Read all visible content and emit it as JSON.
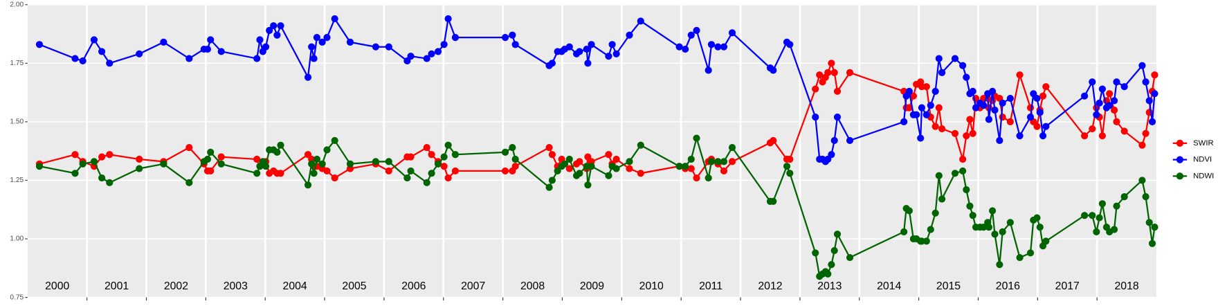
{
  "chart_data": {
    "type": "line",
    "x": [
      2000.2,
      2000.8,
      2000.93,
      2001.12,
      2001.25,
      2001.38,
      2001.88,
      2002.29,
      2002.72,
      2002.97,
      2003.03,
      2003.08,
      2003.26,
      2003.86,
      2003.91,
      2003.96,
      2004.01,
      2004.07,
      2004.14,
      2004.2,
      2004.26,
      2004.72,
      2004.78,
      2004.82,
      2004.87,
      2004.96,
      2005.04,
      2005.17,
      2005.43,
      2005.86,
      2006.08,
      2006.39,
      2006.45,
      2006.72,
      2006.8,
      2006.91,
      2007.01,
      2007.08,
      2007.2,
      2008.04,
      2008.16,
      2008.21,
      2008.78,
      2008.83,
      2008.92,
      2008.99,
      2009.04,
      2009.12,
      2009.24,
      2009.29,
      2009.41,
      2009.43,
      2009.49,
      2009.78,
      2009.84,
      2009.91,
      2010.13,
      2010.32,
      2010.97,
      2011.07,
      2011.17,
      2011.26,
      2011.46,
      2011.51,
      2011.62,
      2011.72,
      2011.86,
      2012.5,
      2012.55,
      2012.78,
      2012.83,
      2013.26,
      2013.33,
      2013.38,
      2013.43,
      2013.47,
      2013.53,
      2013.58,
      2013.63,
      2013.84,
      2014.75,
      2014.79,
      2014.84,
      2014.91,
      2014.96,
      2015.03,
      2015.05,
      2015.13,
      2015.2,
      2015.28,
      2015.34,
      2015.39,
      2015.61,
      2015.74,
      2015.8,
      2015.86,
      2015.91,
      2015.96,
      2016.03,
      2016.09,
      2016.16,
      2016.18,
      2016.24,
      2016.28,
      2016.36,
      2016.41,
      2016.54,
      2016.7,
      2016.88,
      2016.93,
      2016.99,
      2017.04,
      2017.09,
      2017.14,
      2017.79,
      2017.92,
      2017.99,
      2018.04,
      2018.09,
      2018.16,
      2018.21,
      2018.29,
      2018.33,
      2018.46,
      2018.76,
      2018.82,
      2018.88,
      2018.93,
      2018.97
    ],
    "series": [
      {
        "name": "SWIR",
        "color": "#ff0000",
        "values": [
          1.32,
          1.36,
          1.33,
          1.31,
          1.35,
          1.36,
          1.34,
          1.33,
          1.39,
          1.32,
          1.29,
          1.29,
          1.35,
          1.34,
          1.31,
          1.32,
          1.33,
          1.28,
          1.29,
          1.28,
          1.28,
          1.36,
          1.34,
          1.31,
          1.31,
          1.3,
          1.29,
          1.26,
          1.3,
          1.32,
          1.29,
          1.35,
          1.35,
          1.39,
          1.36,
          1.33,
          1.31,
          1.26,
          1.29,
          1.29,
          1.29,
          1.31,
          1.39,
          1.36,
          1.31,
          1.34,
          1.32,
          1.3,
          1.32,
          1.33,
          1.3,
          1.35,
          1.33,
          1.36,
          1.32,
          1.34,
          1.3,
          1.28,
          1.31,
          1.3,
          1.3,
          1.26,
          1.33,
          1.34,
          1.32,
          1.29,
          1.33,
          1.41,
          1.42,
          1.34,
          1.34,
          1.64,
          1.7,
          1.67,
          1.69,
          1.71,
          1.75,
          1.71,
          1.63,
          1.71,
          1.63,
          1.56,
          1.56,
          1.61,
          1.66,
          1.67,
          1.65,
          1.65,
          1.52,
          1.48,
          1.56,
          1.47,
          1.45,
          1.34,
          1.44,
          1.51,
          1.45,
          1.6,
          1.56,
          1.6,
          1.6,
          1.56,
          1.59,
          1.61,
          1.6,
          1.52,
          1.5,
          1.7,
          1.56,
          1.5,
          1.48,
          1.55,
          1.61,
          1.65,
          1.44,
          1.47,
          1.56,
          1.52,
          1.44,
          1.59,
          1.62,
          1.55,
          1.5,
          1.46,
          1.4,
          1.45,
          1.54,
          1.63,
          1.7
        ]
      },
      {
        "name": "NDVI",
        "color": "#0000ff",
        "values": [
          1.83,
          1.77,
          1.76,
          1.85,
          1.8,
          1.75,
          1.79,
          1.84,
          1.77,
          1.81,
          1.81,
          1.85,
          1.8,
          1.77,
          1.85,
          1.8,
          1.82,
          1.89,
          1.91,
          1.87,
          1.91,
          1.69,
          1.82,
          1.77,
          1.86,
          1.84,
          1.86,
          1.94,
          1.84,
          1.82,
          1.82,
          1.76,
          1.78,
          1.77,
          1.79,
          1.8,
          1.83,
          1.94,
          1.86,
          1.86,
          1.87,
          1.83,
          1.74,
          1.75,
          1.8,
          1.8,
          1.81,
          1.82,
          1.79,
          1.8,
          1.81,
          1.75,
          1.83,
          1.78,
          1.83,
          1.79,
          1.87,
          1.93,
          1.82,
          1.81,
          1.87,
          1.89,
          1.72,
          1.83,
          1.82,
          1.82,
          1.88,
          1.73,
          1.72,
          1.84,
          1.83,
          1.52,
          1.34,
          1.34,
          1.33,
          1.34,
          1.36,
          1.42,
          1.52,
          1.42,
          1.5,
          1.61,
          1.63,
          1.53,
          1.53,
          1.43,
          1.56,
          1.53,
          1.57,
          1.63,
          1.77,
          1.71,
          1.77,
          1.74,
          1.69,
          1.62,
          1.63,
          1.56,
          1.58,
          1.57,
          1.62,
          1.51,
          1.63,
          1.55,
          1.42,
          1.58,
          1.6,
          1.44,
          1.52,
          1.62,
          1.6,
          1.54,
          1.44,
          1.48,
          1.61,
          1.67,
          1.53,
          1.58,
          1.64,
          1.56,
          1.57,
          1.59,
          1.67,
          1.65,
          1.74,
          1.67,
          1.59,
          1.5,
          1.62
        ]
      },
      {
        "name": "NDWI",
        "color": "#006400",
        "values": [
          1.31,
          1.28,
          1.32,
          1.33,
          1.26,
          1.24,
          1.3,
          1.32,
          1.24,
          1.33,
          1.34,
          1.37,
          1.32,
          1.28,
          1.31,
          1.33,
          1.31,
          1.38,
          1.38,
          1.37,
          1.4,
          1.23,
          1.32,
          1.28,
          1.34,
          1.32,
          1.38,
          1.42,
          1.32,
          1.33,
          1.33,
          1.26,
          1.29,
          1.24,
          1.28,
          1.32,
          1.35,
          1.4,
          1.36,
          1.37,
          1.39,
          1.34,
          1.22,
          1.25,
          1.29,
          1.31,
          1.32,
          1.34,
          1.27,
          1.28,
          1.31,
          1.23,
          1.31,
          1.27,
          1.31,
          1.3,
          1.33,
          1.4,
          1.31,
          1.31,
          1.34,
          1.43,
          1.26,
          1.33,
          1.33,
          1.33,
          1.39,
          1.16,
          1.16,
          1.31,
          1.28,
          0.94,
          0.84,
          0.85,
          0.86,
          0.85,
          0.89,
          0.95,
          1.02,
          0.92,
          1.03,
          1.13,
          1.12,
          1.0,
          1.0,
          0.99,
          0.99,
          0.99,
          1.04,
          1.11,
          1.27,
          1.17,
          1.28,
          1.29,
          1.21,
          1.14,
          1.1,
          1.05,
          1.05,
          1.05,
          1.07,
          1.05,
          1.12,
          1.02,
          0.89,
          1.03,
          1.07,
          0.92,
          0.94,
          1.08,
          1.09,
          1.05,
          0.97,
          0.99,
          1.1,
          1.1,
          1.03,
          1.09,
          1.15,
          1.05,
          1.03,
          1.04,
          1.14,
          1.18,
          1.25,
          1.18,
          1.07,
          0.98,
          1.05
        ]
      }
    ],
    "xlim": [
      2000,
      2019
    ],
    "xticks": [
      2001,
      2002,
      2003,
      2004,
      2005,
      2006,
      2007,
      2008,
      2009,
      2010,
      2011,
      2012,
      2013,
      2014,
      2015,
      2016,
      2017,
      2018
    ],
    "year_labels": [
      2000,
      2001,
      2002,
      2003,
      2004,
      2005,
      2006,
      2007,
      2008,
      2009,
      2010,
      2011,
      2012,
      2013,
      2014,
      2015,
      2016,
      2017,
      2018
    ],
    "ylim": [
      0.75,
      2.0
    ],
    "yticks": [
      0.75,
      {
        "value": 1.0,
        "label": "1.00"
      },
      1.25,
      {
        "value": 1.5,
        "label": "1.50"
      },
      1.75,
      {
        "value": 2.0,
        "label": "2.00"
      }
    ],
    "grid": true,
    "legend": "right"
  }
}
